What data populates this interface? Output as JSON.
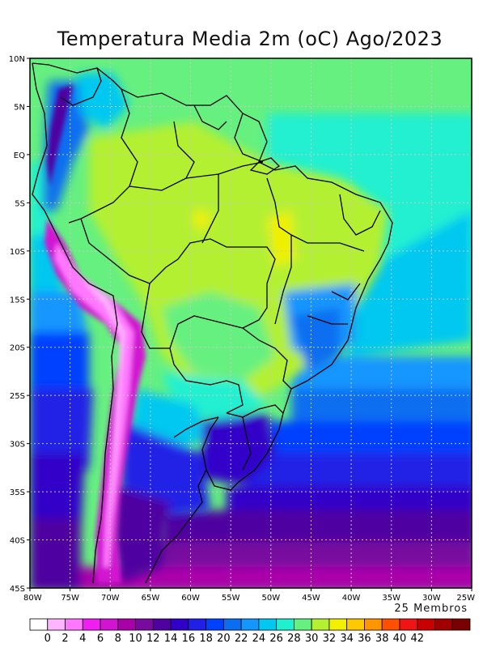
{
  "title": "Temperatura Media 2m (oC) Ago/2023",
  "members_note": "25 Membros",
  "map": {
    "lon_range": [
      -80,
      -25
    ],
    "lat_range": [
      -45,
      10
    ],
    "lat_ticks": [
      {
        "value": 10,
        "label": "10N"
      },
      {
        "value": 5,
        "label": "5N"
      },
      {
        "value": 0,
        "label": "EQ"
      },
      {
        "value": -5,
        "label": "5S"
      },
      {
        "value": -10,
        "label": "10S"
      },
      {
        "value": -15,
        "label": "15S"
      },
      {
        "value": -20,
        "label": "20S"
      },
      {
        "value": -25,
        "label": "25S"
      },
      {
        "value": -30,
        "label": "30S"
      },
      {
        "value": -35,
        "label": "35S"
      },
      {
        "value": -40,
        "label": "40S"
      },
      {
        "value": -45,
        "label": "45S"
      }
    ],
    "lon_ticks": [
      {
        "value": -80,
        "label": "80W"
      },
      {
        "value": -75,
        "label": "75W"
      },
      {
        "value": -70,
        "label": "70W"
      },
      {
        "value": -65,
        "label": "65W"
      },
      {
        "value": -60,
        "label": "60W"
      },
      {
        "value": -55,
        "label": "55W"
      },
      {
        "value": -50,
        "label": "50W"
      },
      {
        "value": -45,
        "label": "45W"
      },
      {
        "value": -40,
        "label": "40W"
      },
      {
        "value": -35,
        "label": "35W"
      },
      {
        "value": -30,
        "label": "30W"
      },
      {
        "value": -25,
        "label": "25W"
      }
    ]
  },
  "colorbar": {
    "labels": [
      "0",
      "2",
      "4",
      "6",
      "8",
      "10",
      "12",
      "14",
      "16",
      "18",
      "20",
      "22",
      "24",
      "26",
      "28",
      "30",
      "32",
      "34",
      "36",
      "38",
      "40",
      "42"
    ],
    "colors": [
      "#ffffff",
      "#ffb4ff",
      "#ff78ff",
      "#f01ef0",
      "#d214d2",
      "#aa00aa",
      "#780aa0",
      "#5000a0",
      "#3000c8",
      "#2020e6",
      "#0040ff",
      "#0a6ef0",
      "#1496ff",
      "#00c8f0",
      "#20f0d0",
      "#66f080",
      "#b4f032",
      "#f0f000",
      "#ffc800",
      "#ff9600",
      "#ff5000",
      "#f01414",
      "#c80000",
      "#a00000",
      "#780000"
    ]
  }
}
